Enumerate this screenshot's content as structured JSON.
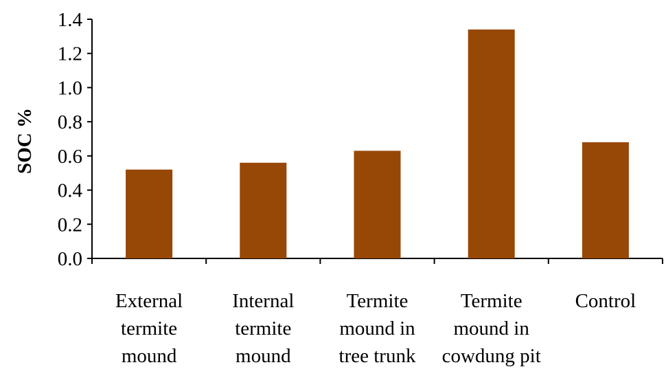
{
  "chart_data": {
    "type": "bar",
    "categories": [
      [
        "External",
        "termite",
        "mound"
      ],
      [
        "Internal",
        "termite",
        "mound"
      ],
      [
        "Termite",
        "mound in",
        "tree trunk"
      ],
      [
        "Termite",
        "mound in",
        "cowdung pit"
      ],
      [
        "Control"
      ]
    ],
    "values": [
      0.52,
      0.56,
      0.63,
      1.34,
      0.68
    ],
    "ylabel": "SOC %",
    "xlabel": "",
    "ylim": [
      0,
      1.4
    ],
    "yticks": [
      "0.0",
      "0.2",
      "0.4",
      "0.6",
      "0.8",
      "1.0",
      "1.2",
      "1.4"
    ],
    "bar_color": "#974706",
    "grid": false,
    "legend": false
  }
}
